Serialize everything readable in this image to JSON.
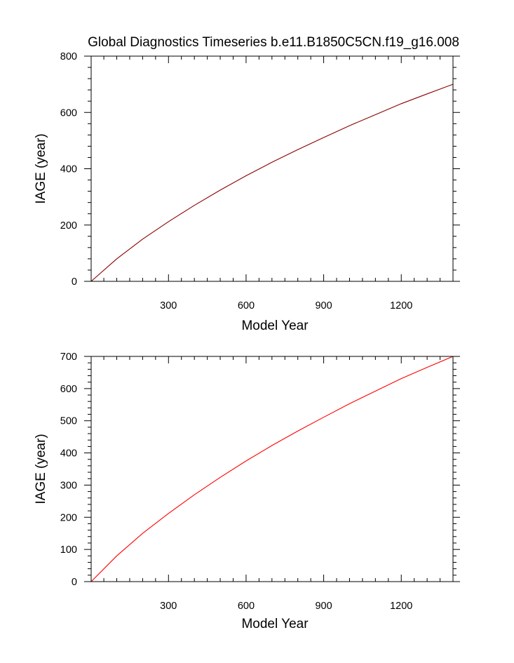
{
  "title": "Global Diagnostics Timeseries b.e11.B1850C5CN.f19_g16.008",
  "chart_data": [
    {
      "type": "line",
      "xlabel": "Model Year",
      "ylabel": "IAGE (year)",
      "xlim": [
        1,
        1400
      ],
      "ylim": [
        0,
        800
      ],
      "x_ticks": [
        300,
        600,
        900,
        1200
      ],
      "x_tick_labels": [
        "300",
        "600",
        "900",
        "1200"
      ],
      "y_ticks": [
        0,
        200,
        400,
        600,
        800
      ],
      "y_tick_labels": [
        "0",
        "200",
        "400",
        "600",
        "800"
      ],
      "series": [
        {
          "color": "#8b0000",
          "x": [
            1,
            100,
            200,
            300,
            400,
            500,
            600,
            700,
            800,
            900,
            1000,
            1100,
            1200,
            1300,
            1400
          ],
          "y": [
            0,
            80,
            150,
            212,
            270,
            324,
            375,
            423,
            468,
            511,
            553,
            592,
            631,
            666,
            700
          ]
        }
      ]
    },
    {
      "type": "line",
      "xlabel": "Model Year",
      "ylabel": "IAGE (year)",
      "xlim": [
        1,
        1400
      ],
      "ylim": [
        0,
        700
      ],
      "x_ticks": [
        300,
        600,
        900,
        1200
      ],
      "x_tick_labels": [
        "300",
        "600",
        "900",
        "1200"
      ],
      "y_ticks": [
        0,
        100,
        200,
        300,
        400,
        500,
        600,
        700
      ],
      "y_tick_labels": [
        "0",
        "100",
        "200",
        "300",
        "400",
        "500",
        "600",
        "700"
      ],
      "series": [
        {
          "color": "#ff0000",
          "x": [
            1,
            100,
            200,
            300,
            400,
            500,
            600,
            700,
            800,
            900,
            1000,
            1100,
            1200,
            1300,
            1400
          ],
          "y": [
            0,
            80,
            150,
            212,
            270,
            324,
            375,
            423,
            468,
            511,
            553,
            592,
            631,
            666,
            700
          ]
        }
      ]
    }
  ]
}
